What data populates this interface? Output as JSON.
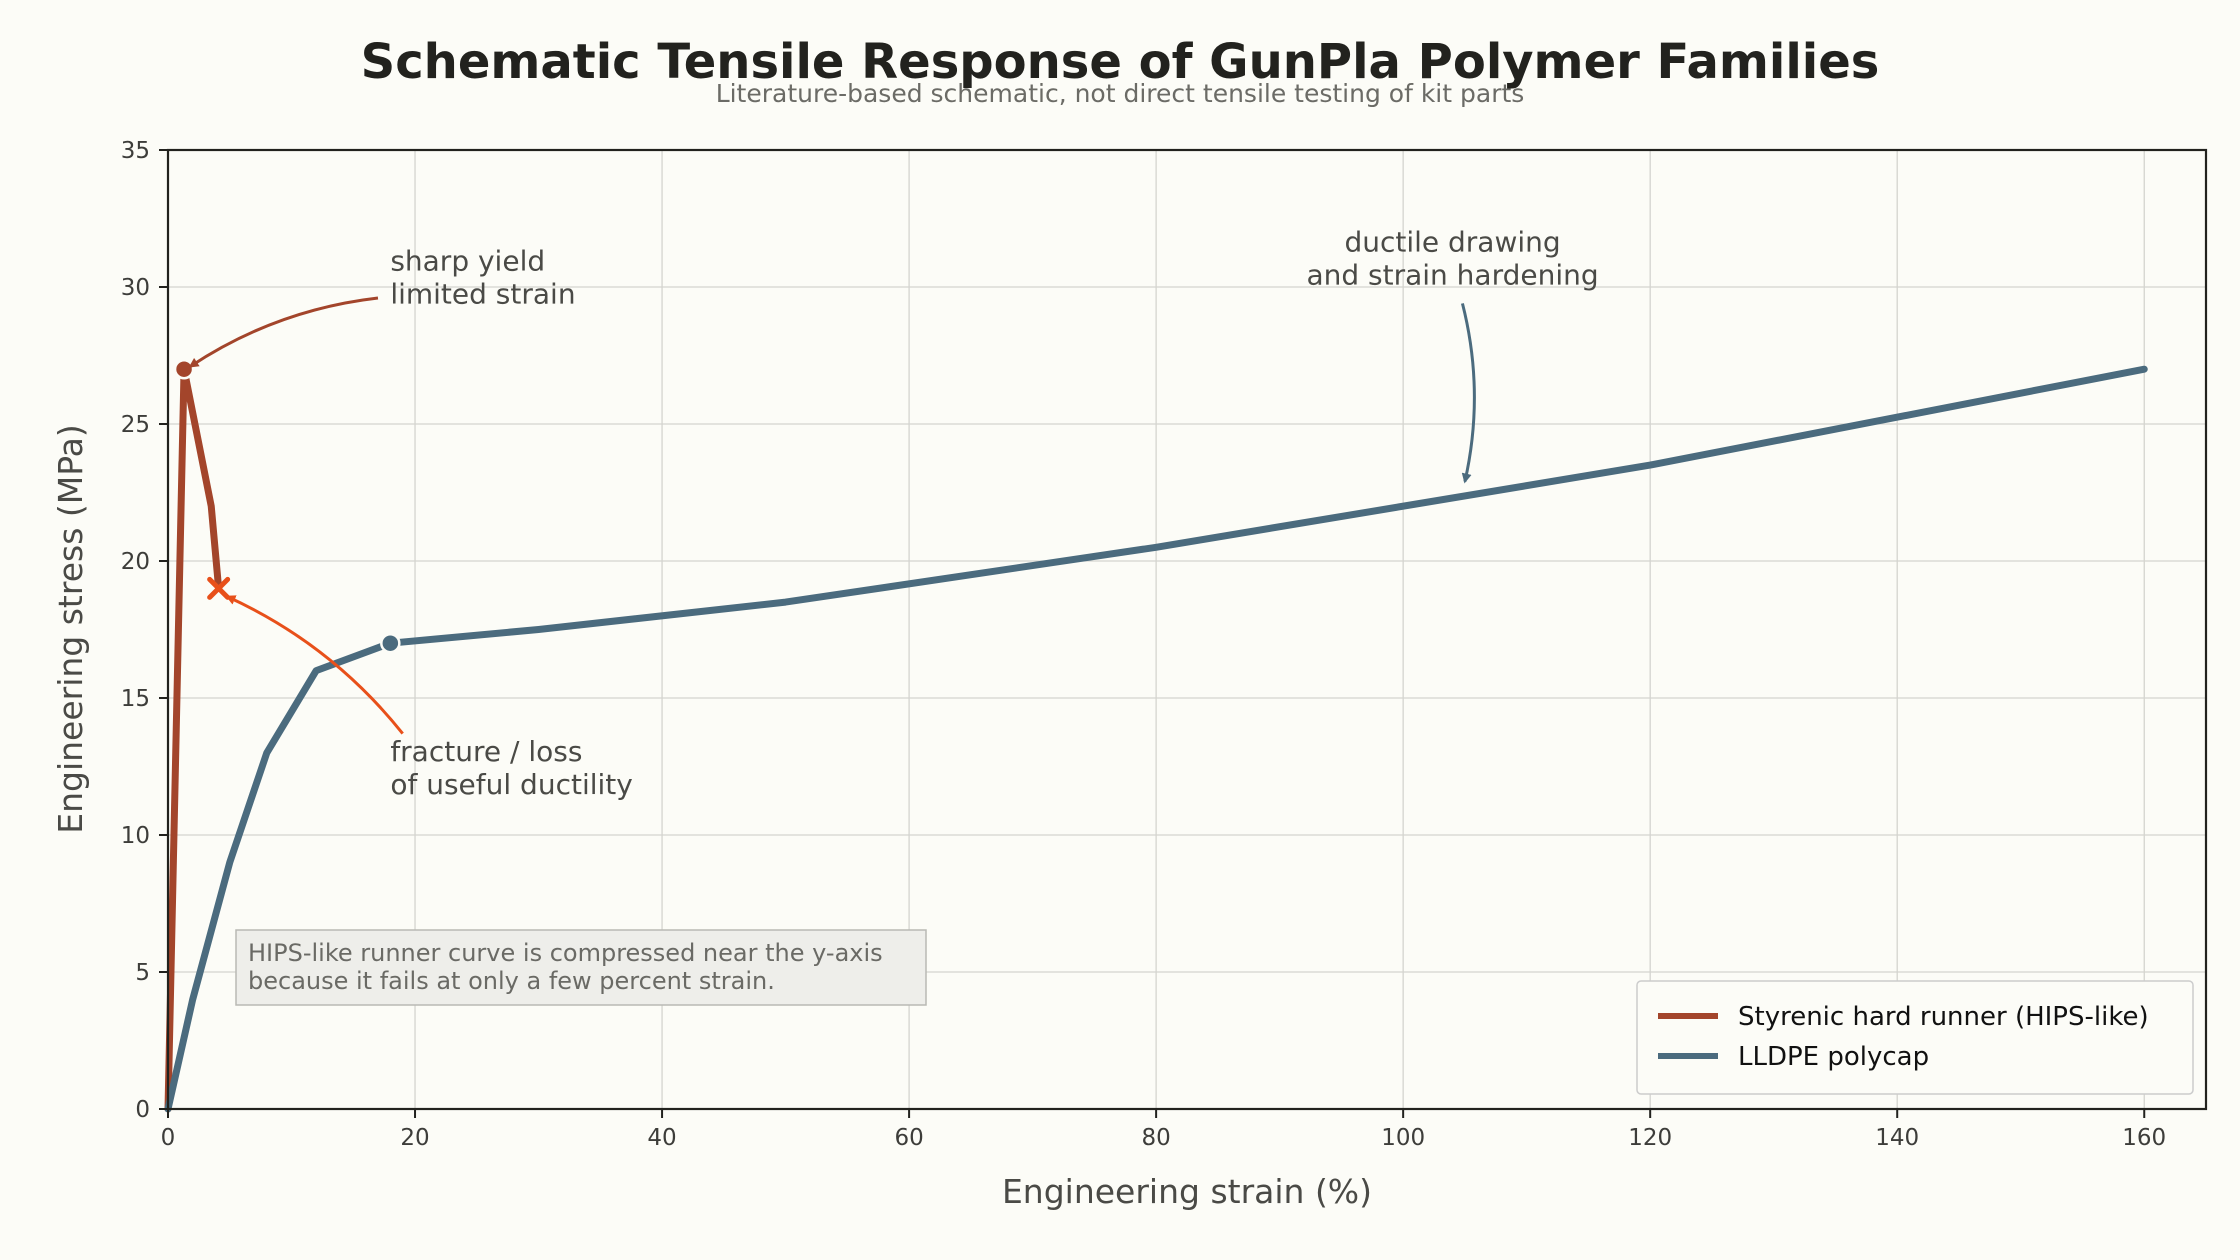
{
  "chart_data": {
    "type": "line",
    "title": "Schematic Tensile Response of GunPla Polymer Families",
    "subtitle": "Literature-based schematic, not direct tensile testing of kit parts",
    "xlabel": "Engineering strain (%)",
    "ylabel": "Engineering stress (MPa)",
    "xlim": [
      0,
      165
    ],
    "ylim": [
      0,
      35
    ],
    "x_ticks": [
      0,
      20,
      40,
      60,
      80,
      100,
      120,
      140,
      160
    ],
    "y_ticks": [
      0,
      5,
      10,
      15,
      20,
      25,
      30,
      35
    ],
    "grid": true,
    "legend_position": "bottom-right",
    "series": [
      {
        "name": "Styrenic hard runner (HIPS-like)",
        "color": "#a3452b",
        "x": [
          0,
          1.3,
          3.5,
          4.1
        ],
        "y": [
          0,
          27,
          22,
          19
        ],
        "markers": [
          {
            "x": 1.3,
            "y": 27,
            "shape": "dot"
          },
          {
            "x": 4.1,
            "y": 19,
            "shape": "x",
            "color": "#e8501a"
          }
        ]
      },
      {
        "name": "LLDPE polycap",
        "color": "#4b6b7e",
        "x": [
          0,
          2,
          5,
          8,
          12,
          18,
          30,
          50,
          80,
          120,
          160
        ],
        "y": [
          0,
          4,
          9,
          13,
          16,
          17,
          17.5,
          18.5,
          20.5,
          23.5,
          27
        ],
        "markers": [
          {
            "x": 18,
            "y": 17,
            "shape": "dot"
          }
        ]
      }
    ],
    "annotations": [
      {
        "lines": [
          "sharp yield",
          "limited strain"
        ],
        "text_at": [
          18,
          30.6
        ],
        "align": "start",
        "arrow_from": [
          17,
          29.6
        ],
        "arrow_to": [
          1.8,
          27.1
        ],
        "color": "#a3452b"
      },
      {
        "lines": [
          "fracture / loss",
          "of useful ductility"
        ],
        "text_at": [
          18,
          12.7
        ],
        "align": "start",
        "arrow_from": [
          19,
          13.7
        ],
        "arrow_to": [
          4.8,
          18.7
        ],
        "color": "#e8501a"
      },
      {
        "lines": [
          "ductile drawing",
          "and strain hardening"
        ],
        "text_at": [
          104,
          31.3
        ],
        "align": "middle",
        "arrow_from": [
          104.8,
          29.4
        ],
        "arrow_to": [
          105,
          22.9
        ],
        "color": "#4b6b7e"
      }
    ],
    "note": [
      "HIPS-like runner curve is compressed near the y-axis",
      "because it fails at only a few percent strain."
    ]
  }
}
